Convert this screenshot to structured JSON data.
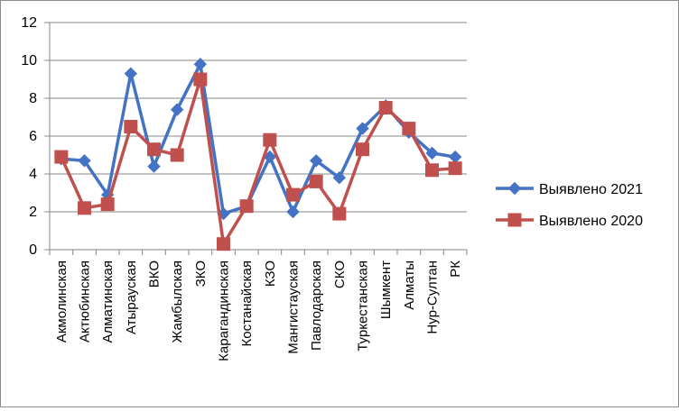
{
  "chart_data": {
    "type": "line",
    "categories": [
      "Акмолинская",
      "Актюбинская",
      "Алматинская",
      "Атырауская",
      "ВКО",
      "Жамбылская",
      "ЗКО",
      "Карагандинская",
      "Костанайская",
      "КЗО",
      "Мангистауская",
      "Павлодарская",
      "СКО",
      "Туркестанская",
      "Шымкент",
      "Алматы",
      "Нур-Султан",
      "РК"
    ],
    "series": [
      {
        "name": "Выявлено 2021",
        "color": "#4472c4",
        "marker": "diamond",
        "values": [
          4.8,
          4.7,
          2.9,
          9.3,
          4.4,
          7.4,
          9.8,
          1.9,
          2.3,
          4.9,
          2.0,
          4.7,
          3.8,
          6.4,
          7.6,
          6.2,
          5.1,
          4.9
        ]
      },
      {
        "name": "Выявлено 2020",
        "color": "#c0504d",
        "marker": "square",
        "values": [
          4.9,
          2.2,
          2.4,
          6.5,
          5.3,
          5.0,
          9.0,
          0.3,
          2.3,
          5.8,
          2.9,
          3.6,
          1.9,
          5.3,
          7.5,
          6.4,
          4.2,
          4.3
        ]
      }
    ],
    "ylim": [
      0,
      12
    ],
    "yticks": [
      "0",
      "2",
      "4",
      "6",
      "8",
      "10",
      "12"
    ],
    "grid": true,
    "legend_position": "right"
  }
}
